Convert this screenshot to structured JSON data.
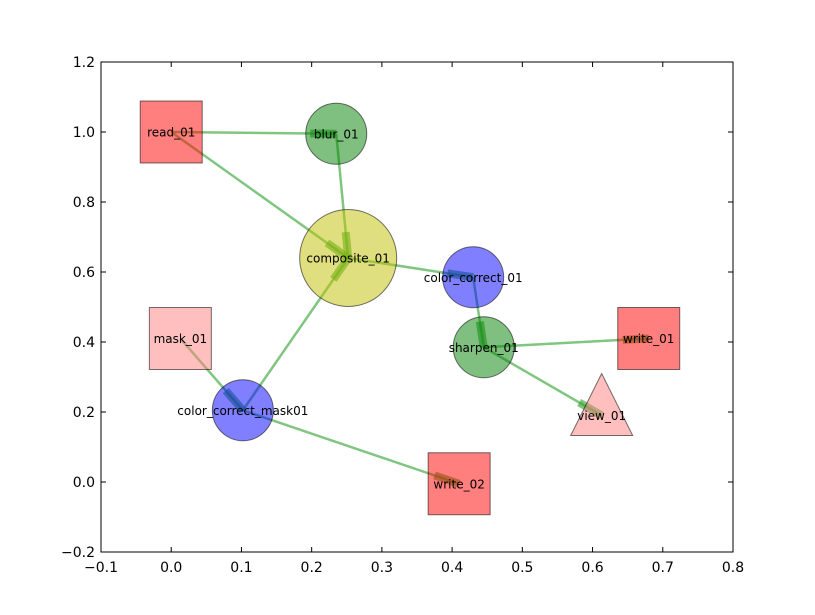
{
  "chart_data": {
    "type": "network-graph",
    "xlim": [
      -0.1,
      0.8
    ],
    "ylim": [
      -0.2,
      1.2
    ],
    "xticks": [
      "−0.1",
      "0.0",
      "0.1",
      "0.2",
      "0.3",
      "0.4",
      "0.5",
      "0.6",
      "0.7",
      "0.8"
    ],
    "yticks": [
      "−0.2",
      "0.0",
      "0.2",
      "0.4",
      "0.6",
      "0.8",
      "1.0",
      "1.2"
    ],
    "xtick_values": [
      -0.1,
      0.0,
      0.1,
      0.2,
      0.3,
      0.4,
      0.5,
      0.6,
      0.7,
      0.8
    ],
    "ytick_values": [
      -0.2,
      0.0,
      0.2,
      0.4,
      0.6,
      0.8,
      1.0,
      1.2
    ],
    "grid": false,
    "edge_color": "#2ca02c",
    "nodes": [
      {
        "id": "read_01",
        "label": "read_01",
        "x": 0.0,
        "y": 1.0,
        "shape": "square",
        "color": "#ff0000"
      },
      {
        "id": "blur_01",
        "label": "blur_01",
        "x": 0.235,
        "y": 0.995,
        "shape": "circle",
        "color": "#008000"
      },
      {
        "id": "composite_01",
        "label": "composite_01",
        "x": 0.252,
        "y": 0.64,
        "shape": "circle-large",
        "color": "#bfbf00"
      },
      {
        "id": "color_correct_01",
        "label": "color_correct_01",
        "x": 0.43,
        "y": 0.585,
        "shape": "circle",
        "color": "#0000ff"
      },
      {
        "id": "sharpen_01",
        "label": "sharpen_01",
        "x": 0.445,
        "y": 0.385,
        "shape": "circle",
        "color": "#008000"
      },
      {
        "id": "write_01",
        "label": "write_01",
        "x": 0.68,
        "y": 0.41,
        "shape": "square",
        "color": "#ff0000"
      },
      {
        "id": "view_01",
        "label": "view_01",
        "x": 0.613,
        "y": 0.19,
        "shape": "triangle",
        "color": "#ff8080"
      },
      {
        "id": "mask_01",
        "label": "mask_01",
        "x": 0.013,
        "y": 0.41,
        "shape": "square",
        "color": "#ff8080"
      },
      {
        "id": "color_correct_mask01",
        "label": "color_correct_mask01",
        "x": 0.102,
        "y": 0.205,
        "shape": "circle",
        "color": "#0000ff"
      },
      {
        "id": "write_02",
        "label": "write_02",
        "x": 0.41,
        "y": -0.005,
        "shape": "square",
        "color": "#ff0000"
      }
    ],
    "edges": [
      {
        "from": "read_01",
        "to": "blur_01"
      },
      {
        "from": "read_01",
        "to": "composite_01"
      },
      {
        "from": "blur_01",
        "to": "composite_01"
      },
      {
        "from": "color_correct_mask01",
        "to": "composite_01"
      },
      {
        "from": "composite_01",
        "to": "color_correct_01"
      },
      {
        "from": "color_correct_01",
        "to": "sharpen_01"
      },
      {
        "from": "sharpen_01",
        "to": "write_01"
      },
      {
        "from": "sharpen_01",
        "to": "view_01"
      },
      {
        "from": "mask_01",
        "to": "color_correct_mask01"
      },
      {
        "from": "color_correct_mask01",
        "to": "write_02"
      }
    ]
  }
}
